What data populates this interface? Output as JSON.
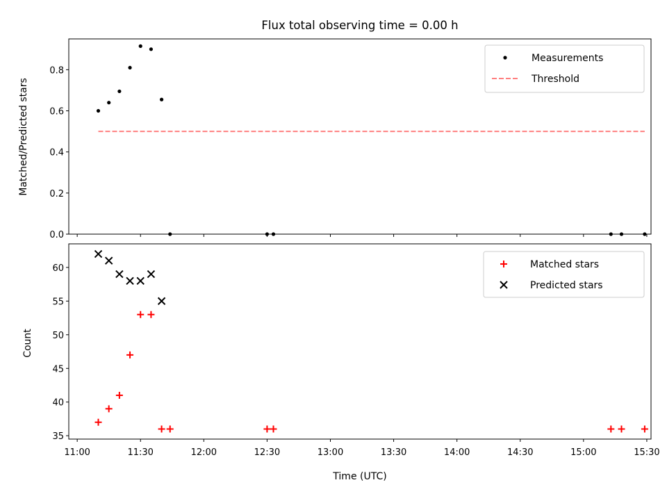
{
  "chart_data": [
    {
      "type": "scatter",
      "title": "Flux total observing time = 0.00 h",
      "xlabel": "",
      "ylabel": "Matched/Predicted stars",
      "xlim": [
        "10:56",
        "15:32"
      ],
      "ylim": [
        0,
        0.95
      ],
      "yticks": [
        0.0,
        0.2,
        0.4,
        0.6,
        0.8
      ],
      "ytick_labels": [
        "0.0",
        "0.2",
        "0.4",
        "0.6",
        "0.8"
      ],
      "legend_position": "top-right",
      "grid": false,
      "series": [
        {
          "name": "Measurements",
          "kind": "points",
          "color": "#000000",
          "marker": "dot",
          "points": [
            {
              "x": "11:10",
              "y": 0.6
            },
            {
              "x": "11:15",
              "y": 0.64
            },
            {
              "x": "11:20",
              "y": 0.695
            },
            {
              "x": "11:25",
              "y": 0.81
            },
            {
              "x": "11:30",
              "y": 0.915
            },
            {
              "x": "11:35",
              "y": 0.9
            },
            {
              "x": "11:40",
              "y": 0.655
            },
            {
              "x": "11:44",
              "y": 0.0
            },
            {
              "x": "12:30",
              "y": 0.0
            },
            {
              "x": "12:33",
              "y": 0.0
            },
            {
              "x": "15:13",
              "y": 0.0
            },
            {
              "x": "15:18",
              "y": 0.0
            },
            {
              "x": "15:29",
              "y": 0.0
            }
          ]
        },
        {
          "name": "Threshold",
          "kind": "line",
          "color": "#ff7f7f",
          "dash": true,
          "points": [
            {
              "x": "11:10",
              "y": 0.5
            },
            {
              "x": "15:29",
              "y": 0.5
            }
          ]
        }
      ]
    },
    {
      "type": "scatter",
      "title": "",
      "xlabel": "Time (UTC)",
      "ylabel": "Count",
      "xlim": [
        "10:56",
        "15:32"
      ],
      "ylim": [
        34.5,
        63.5
      ],
      "yticks": [
        35,
        40,
        45,
        50,
        55,
        60
      ],
      "ytick_labels": [
        "35",
        "40",
        "45",
        "50",
        "55",
        "60"
      ],
      "xticks": [
        "11:00",
        "11:30",
        "12:00",
        "12:30",
        "13:00",
        "13:30",
        "14:00",
        "14:30",
        "15:00",
        "15:30"
      ],
      "xtick_labels": [
        "11:00",
        "11:30",
        "12:00",
        "12:30",
        "13:00",
        "13:30",
        "14:00",
        "14:30",
        "15:00",
        "15:30"
      ],
      "legend_position": "top-right",
      "grid": false,
      "series": [
        {
          "name": "Matched stars",
          "kind": "points",
          "color": "#ff0000",
          "marker": "plus",
          "points": [
            {
              "x": "11:10",
              "y": 37
            },
            {
              "x": "11:15",
              "y": 39
            },
            {
              "x": "11:20",
              "y": 41
            },
            {
              "x": "11:25",
              "y": 47
            },
            {
              "x": "11:30",
              "y": 53
            },
            {
              "x": "11:35",
              "y": 53
            },
            {
              "x": "11:40",
              "y": 36
            },
            {
              "x": "11:44",
              "y": 36
            },
            {
              "x": "12:30",
              "y": 36
            },
            {
              "x": "12:33",
              "y": 36
            },
            {
              "x": "15:13",
              "y": 36
            },
            {
              "x": "15:18",
              "y": 36
            },
            {
              "x": "15:29",
              "y": 36
            }
          ]
        },
        {
          "name": "Predicted stars",
          "kind": "points",
          "color": "#000000",
          "marker": "cross",
          "points": [
            {
              "x": "11:10",
              "y": 62
            },
            {
              "x": "11:15",
              "y": 61
            },
            {
              "x": "11:20",
              "y": 59
            },
            {
              "x": "11:25",
              "y": 58
            },
            {
              "x": "11:30",
              "y": 58
            },
            {
              "x": "11:35",
              "y": 59
            },
            {
              "x": "11:40",
              "y": 55
            }
          ]
        }
      ]
    }
  ]
}
